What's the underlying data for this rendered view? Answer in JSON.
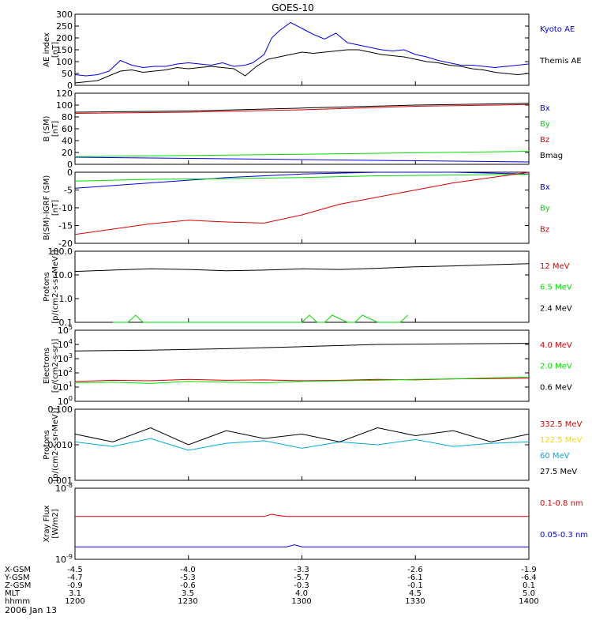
{
  "title": "GOES-10",
  "date_label": "2006 Jan 13",
  "footer": {
    "row_labels": [
      "X-GSM",
      "Y-GSM",
      "Z-GSM",
      "MLT",
      "hhmm"
    ],
    "columns": [
      [
        "-4.5",
        "-4.7",
        "-0.9",
        "3.1",
        "1200"
      ],
      [
        "-4.0",
        "-5.3",
        "-0.6",
        "3.5",
        "1230"
      ],
      [
        "-3.3",
        "-5.7",
        "-0.3",
        "4.0",
        "1300"
      ],
      [
        "-2.6",
        "-6.1",
        "-0.1",
        "4.5",
        "1330"
      ],
      [
        "-1.9",
        "-6.4",
        "0.1",
        "5.0",
        "1400"
      ]
    ]
  },
  "colors": {
    "black": "#000000",
    "blue": "#0000ee",
    "green": "#00dd00",
    "red": "#dd0000",
    "yellow": "#eedd00",
    "cyan": "#00aadd"
  },
  "chart_data": [
    {
      "type": "line",
      "ylabel": "AE index [nT]",
      "ylim": [
        0,
        300
      ],
      "yticks": [
        "0",
        "50",
        "100",
        "150",
        "200",
        "250",
        "300"
      ],
      "x_range_hhmm": [
        "1200",
        "1400"
      ],
      "series": [
        {
          "name": "Kyoto AE",
          "color": "blue",
          "x": [
            0,
            3,
            6,
            9,
            12,
            15,
            18,
            21,
            24,
            27,
            30,
            33,
            36,
            39,
            42,
            45,
            47,
            50,
            52,
            54,
            57,
            60,
            63,
            66,
            69,
            72,
            75,
            78,
            81,
            84,
            87,
            90,
            93,
            96,
            99,
            102,
            105,
            108,
            111,
            114,
            117,
            120
          ],
          "y": [
            45,
            40,
            45,
            60,
            105,
            85,
            75,
            80,
            80,
            90,
            95,
            90,
            85,
            95,
            80,
            85,
            95,
            130,
            200,
            230,
            265,
            240,
            215,
            195,
            220,
            180,
            170,
            160,
            150,
            145,
            150,
            130,
            120,
            105,
            95,
            85,
            85,
            80,
            75,
            80,
            85,
            90
          ]
        },
        {
          "name": "Themis AE",
          "color": "black",
          "x": [
            0,
            3,
            6,
            9,
            12,
            15,
            18,
            21,
            24,
            27,
            30,
            33,
            36,
            39,
            42,
            45,
            48,
            51,
            54,
            57,
            60,
            63,
            66,
            69,
            72,
            75,
            78,
            81,
            84,
            87,
            90,
            93,
            96,
            99,
            102,
            105,
            108,
            111,
            114,
            117,
            120
          ],
          "y": [
            10,
            15,
            20,
            40,
            60,
            65,
            55,
            60,
            65,
            75,
            70,
            75,
            80,
            75,
            70,
            40,
            80,
            110,
            120,
            130,
            140,
            135,
            140,
            145,
            150,
            150,
            140,
            130,
            125,
            120,
            110,
            100,
            95,
            85,
            80,
            70,
            65,
            55,
            50,
            45,
            50
          ]
        }
      ]
    },
    {
      "type": "line",
      "ylabel": "B (SM) [nT]",
      "ylim": [
        0,
        120
      ],
      "yticks": [
        "0",
        "20",
        "40",
        "60",
        "80",
        "100",
        "120"
      ],
      "series": [
        {
          "name": "Bx",
          "color": "blue",
          "x": [
            0,
            60,
            120
          ],
          "y": [
            12,
            8,
            4
          ]
        },
        {
          "name": "By",
          "color": "green",
          "x": [
            0,
            60,
            120
          ],
          "y": [
            13,
            17,
            22
          ]
        },
        {
          "name": "Bz",
          "color": "red",
          "x": [
            0,
            30,
            60,
            90,
            120
          ],
          "y": [
            86,
            88,
            92,
            98,
            101
          ]
        },
        {
          "name": "Bmag",
          "color": "black",
          "x": [
            0,
            30,
            60,
            90,
            120
          ],
          "y": [
            88,
            90,
            95,
            100,
            103
          ]
        }
      ]
    },
    {
      "type": "line",
      "ylabel": "B(SM)-IGRF (SM) [nT]",
      "ylim": [
        -20,
        0
      ],
      "yticks": [
        "-20",
        "-15",
        "-10",
        "-5",
        "0"
      ],
      "series": [
        {
          "name": "Bx",
          "color": "blue",
          "x": [
            0,
            20,
            40,
            60,
            80,
            100,
            120
          ],
          "y": [
            -4.5,
            -3,
            -1.5,
            -0.5,
            0,
            0,
            -0.5
          ]
        },
        {
          "name": "By",
          "color": "green",
          "x": [
            0,
            20,
            40,
            60,
            80,
            100,
            120
          ],
          "y": [
            -2.5,
            -2,
            -1.8,
            -1.5,
            -1,
            -0.8,
            -0.6
          ]
        },
        {
          "name": "Bz",
          "color": "red",
          "x": [
            0,
            10,
            20,
            30,
            40,
            50,
            60,
            70,
            80,
            90,
            100,
            110,
            120
          ],
          "y": [
            -17.5,
            -16,
            -14.5,
            -13.5,
            -14,
            -14.3,
            -12,
            -9,
            -7,
            -5,
            -3,
            -1.5,
            0
          ]
        }
      ]
    },
    {
      "type": "line",
      "ylabel": "Protons [p/(cm2-s-sr-MeV)]",
      "yscale": "log",
      "ylim": [
        0.1,
        100
      ],
      "yticks": [
        "0.1",
        "1.0",
        "10.0",
        "100.0"
      ],
      "series": [
        {
          "name": "12 MeV",
          "color": "red",
          "x": [],
          "y": []
        },
        {
          "name": "6.5 MeV",
          "color": "green",
          "x": [
            10,
            14,
            16,
            18,
            20,
            60,
            62,
            64,
            66,
            68,
            72,
            74,
            76,
            80,
            86,
            88
          ],
          "y": [
            0.1,
            0.1,
            0.2,
            0.1,
            0.1,
            0.1,
            0.2,
            0.1,
            0.1,
            0.2,
            0.1,
            0.1,
            0.2,
            0.1,
            0.1,
            0.2
          ]
        },
        {
          "name": "2.4 MeV",
          "color": "black",
          "x": [
            0,
            10,
            20,
            30,
            40,
            50,
            60,
            70,
            80,
            90,
            100,
            110,
            120
          ],
          "y": [
            14,
            16,
            18,
            17,
            15,
            16,
            18,
            17,
            19,
            22,
            24,
            27,
            30
          ]
        }
      ]
    },
    {
      "type": "line",
      "ylabel": "Electrons [e/(cm2-s-sr)]",
      "yscale": "log",
      "ylim": [
        1,
        100000
      ],
      "yticks": [
        "10^0",
        "10^1",
        "10^2",
        "10^3",
        "10^4",
        "10^5"
      ],
      "series": [
        {
          "name": "4.0 MeV",
          "color": "red",
          "x": [
            0,
            10,
            20,
            30,
            40,
            50,
            60,
            70,
            80,
            90,
            100,
            110,
            120
          ],
          "y": [
            25,
            30,
            28,
            35,
            30,
            32,
            28,
            30,
            35,
            32,
            38,
            40,
            42
          ]
        },
        {
          "name": "2.0 MeV",
          "color": "green",
          "x": [
            0,
            10,
            20,
            30,
            40,
            50,
            60,
            70,
            80,
            90,
            100,
            110,
            120
          ],
          "y": [
            20,
            22,
            18,
            25,
            22,
            20,
            25,
            28,
            30,
            35,
            38,
            45,
            50
          ]
        },
        {
          "name": "0.6 MeV",
          "color": "black",
          "x": [
            0,
            20,
            40,
            60,
            80,
            100,
            120
          ],
          "y": [
            3500,
            4000,
            5000,
            7000,
            10000,
            11000,
            12000
          ]
        }
      ]
    },
    {
      "type": "line",
      "ylabel": "Protons [p/(cm2-s-sr-MeV)]",
      "yscale": "log",
      "ylim": [
        0.001,
        0.1
      ],
      "yticks": [
        "0.001",
        "0.010",
        "0.100"
      ],
      "series": [
        {
          "name": "332.5 MeV",
          "color": "red",
          "x": [],
          "y": []
        },
        {
          "name": "122.5 MeV",
          "color": "yellow",
          "x": [],
          "y": []
        },
        {
          "name": "60 MeV",
          "color": "cyan",
          "x": [
            0,
            10,
            20,
            30,
            40,
            50,
            60,
            70,
            80,
            90,
            100,
            110,
            120
          ],
          "y": [
            0.012,
            0.009,
            0.015,
            0.007,
            0.011,
            0.013,
            0.008,
            0.012,
            0.01,
            0.014,
            0.009,
            0.011,
            0.012
          ]
        },
        {
          "name": "27.5 MeV",
          "color": "black",
          "x": [
            0,
            10,
            20,
            30,
            40,
            50,
            60,
            70,
            80,
            90,
            100,
            110,
            120
          ],
          "y": [
            0.02,
            0.012,
            0.03,
            0.01,
            0.025,
            0.015,
            0.02,
            0.012,
            0.03,
            0.018,
            0.025,
            0.012,
            0.02
          ]
        }
      ]
    },
    {
      "type": "line",
      "ylabel": "Xray Flux [W/m2]",
      "yscale": "log",
      "ylim": [
        1e-09,
        1e-08
      ],
      "yticks": [
        "10^-9",
        "10^-8"
      ],
      "series": [
        {
          "name": "0.1-0.8 nm",
          "color": "red",
          "x": [
            0,
            50,
            52,
            54,
            56,
            120
          ],
          "y": [
            4e-09,
            4e-09,
            4.3e-09,
            4.1e-09,
            4e-09,
            4e-09
          ]
        },
        {
          "name": "0.05-0.3 nm",
          "color": "blue",
          "x": [
            0,
            56,
            58,
            60,
            120
          ],
          "y": [
            1.5e-09,
            1.5e-09,
            1.6e-09,
            1.5e-09,
            1.5e-09
          ]
        }
      ]
    }
  ]
}
